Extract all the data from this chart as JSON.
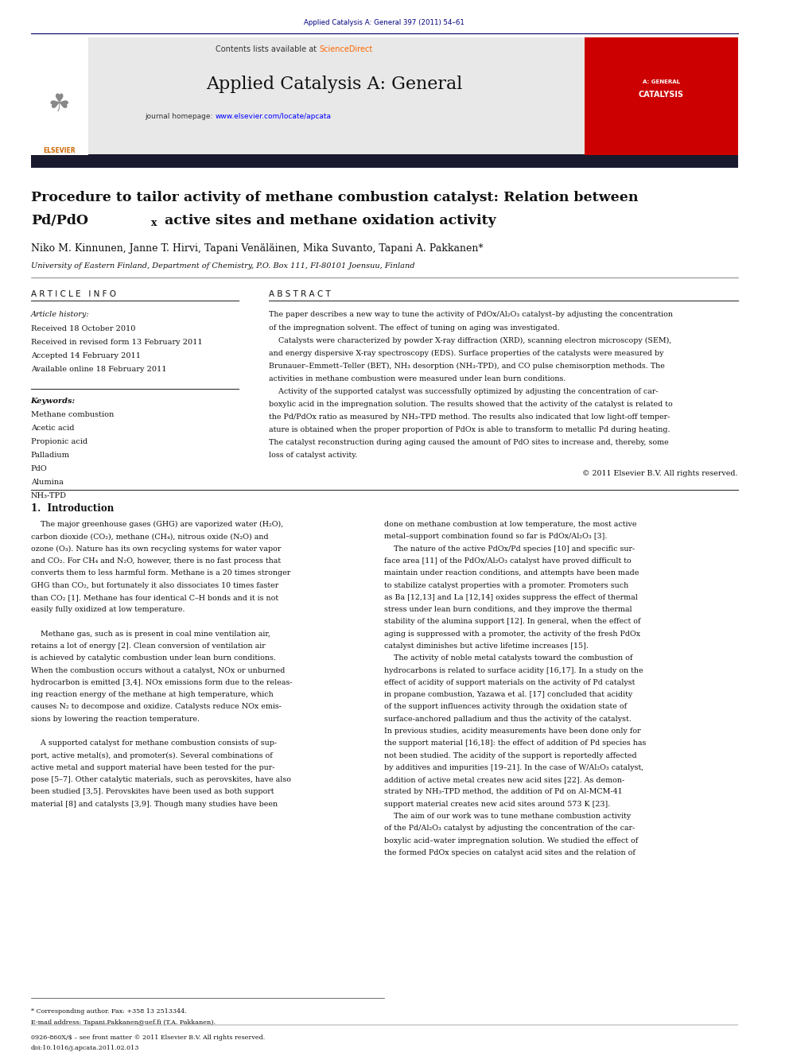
{
  "page_width": 9.92,
  "page_height": 13.23,
  "bg_color": "#ffffff",
  "journal_ref": "Applied Catalysis A: General 397 (2011) 54–61",
  "journal_ref_color": "#000080",
  "contents_text": "Contents lists available at ",
  "sciencedirect_text": "ScienceDirect",
  "sciencedirect_color": "#FF6600",
  "journal_name": "Applied Catalysis A: General",
  "journal_homepage_url_color": "#0000FF",
  "header_bg": "#e8e8e8",
  "article_title_line1": "Procedure to tailor activity of methane combustion catalyst: Relation between",
  "article_title_line2a": "Pd/PdO",
  "article_title_line2b": "x",
  "article_title_line2c": " active sites and methane oxidation activity",
  "authors": "Niko M. Kinnunen, Janne T. Hirvi, Tapani Venäläinen, Mika Suvanto, Tapani A. Pakkanen*",
  "affiliation": "University of Eastern Finland, Department of Chemistry, P.O. Box 111, FI-80101 Joensuu, Finland",
  "article_info_header": "A R T I C L E   I N F O",
  "abstract_header": "A B S T R A C T",
  "article_history_label": "Article history:",
  "received1": "Received 18 October 2010",
  "received2": "Received in revised form 13 February 2011",
  "accepted": "Accepted 14 February 2011",
  "available": "Available online 18 February 2011",
  "keywords_label": "Keywords:",
  "keywords": [
    "Methane combustion",
    "Acetic acid",
    "Propionic acid",
    "Palladium",
    "PdO",
    "Alumina",
    "NH₃-TPD"
  ],
  "copyright": "© 2011 Elsevier B.V. All rights reserved.",
  "intro_heading": "1.  Introduction",
  "footer_text": "* Corresponding author. Fax: +358 13 2513344.",
  "footer_email": "E-mail address: Tapani.Pakkanen@uef.fi (T.A. Pakkanen).",
  "footer_issn": "0926-860X/$ – see front matter © 2011 Elsevier B.V. All rights reserved.",
  "footer_doi": "doi:10.1016/j.apcata.2011.02.013",
  "red_cover_color": "#cc0000"
}
